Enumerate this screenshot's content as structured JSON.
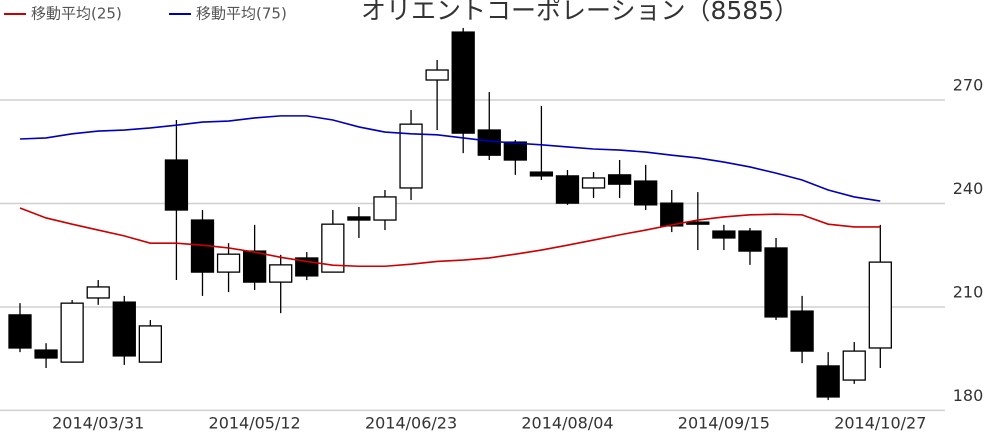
{
  "chart_data": {
    "type": "candlestick",
    "title": "オリエントコーポレーション（8585）",
    "categories": [
      null,
      null,
      null,
      "2014/03/31",
      null,
      null,
      null,
      null,
      null,
      "2014/05/12",
      null,
      null,
      null,
      null,
      null,
      "2014/06/23",
      null,
      null,
      null,
      null,
      null,
      "2014/08/04",
      null,
      null,
      null,
      null,
      null,
      "2014/09/15",
      null,
      null,
      null,
      null,
      null,
      "2014/10/27"
    ],
    "open": [
      207.7,
      197.5,
      194.0,
      212.6,
      211.4,
      194.0,
      252.6,
      235.2,
      220.1,
      226.2,
      217.2,
      224.2,
      220.1,
      236.1,
      235.2,
      244.5,
      275.8,
      289.7,
      261.3,
      257.8,
      249.1,
      248.0,
      244.5,
      248.3,
      246.5,
      240.1,
      234.6,
      232.0,
      232.0,
      227.1,
      208.8,
      192.9,
      188.8,
      198.1
    ],
    "high": [
      211.1,
      199.5,
      212.0,
      217.8,
      213.2,
      206.2,
      264.2,
      238.1,
      228.5,
      233.8,
      225.1,
      225.9,
      238.1,
      239.0,
      243.9,
      267.1,
      281.6,
      290.9,
      272.3,
      258.4,
      268.3,
      249.7,
      249.1,
      252.6,
      251.2,
      243.9,
      243.3,
      233.8,
      232.9,
      230.0,
      213.2,
      196.9,
      199.8,
      233.8
    ],
    "low": [
      196.9,
      192.3,
      194.0,
      210.6,
      193.2,
      194.0,
      217.8,
      213.2,
      214.3,
      214.9,
      208.2,
      217.8,
      220.1,
      230.0,
      232.3,
      241.0,
      261.3,
      254.6,
      252.6,
      248.3,
      246.8,
      239.6,
      241.6,
      241.6,
      238.1,
      231.7,
      226.5,
      226.5,
      222.2,
      206.2,
      193.7,
      183.0,
      187.7,
      192.3
    ],
    "close": [
      198.1,
      195.2,
      211.1,
      215.8,
      195.8,
      204.5,
      238.1,
      220.1,
      225.3,
      217.2,
      222.2,
      219.0,
      234.0,
      235.2,
      241.9,
      263.0,
      278.7,
      260.4,
      254.0,
      252.6,
      248.0,
      240.1,
      247.4,
      245.6,
      239.6,
      233.5,
      234.0,
      230.0,
      226.2,
      207.1,
      197.2,
      183.9,
      197.2,
      223.0
    ],
    "up_color": "#ffffff",
    "down_color": "#000000",
    "series": [
      {
        "name": "移動平均(25)",
        "color": "#cc0000",
        "values": [
          238.7,
          235.8,
          234.0,
          232.3,
          230.6,
          228.5,
          228.5,
          227.9,
          227.1,
          225.9,
          224.4,
          223.2,
          222.1,
          221.8,
          221.8,
          222.4,
          223.2,
          223.6,
          224.2,
          225.3,
          226.5,
          227.9,
          229.4,
          230.9,
          232.3,
          233.8,
          235.2,
          236.1,
          236.7,
          236.9,
          236.7,
          234.0,
          233.2,
          233.2
        ]
      },
      {
        "name": "移動平均(75)",
        "color": "#0000bb",
        "values": [
          258.7,
          259.0,
          260.2,
          261.0,
          261.3,
          261.9,
          262.7,
          263.6,
          263.9,
          264.8,
          265.4,
          265.4,
          264.2,
          262.2,
          260.7,
          260.2,
          259.9,
          259.0,
          258.1,
          257.5,
          257.0,
          256.4,
          255.8,
          255.5,
          254.9,
          254.0,
          253.2,
          252.0,
          250.6,
          248.8,
          246.8,
          243.9,
          241.9,
          240.7
        ]
      }
    ],
    "ylim": [
      172,
      299
    ],
    "yticks": [
      180,
      210,
      240,
      270
    ],
    "grid": true
  }
}
